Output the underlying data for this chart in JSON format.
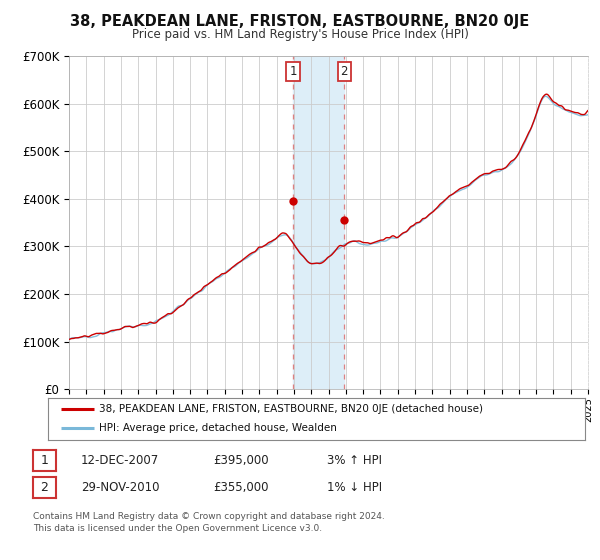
{
  "title": "38, PEAKDEAN LANE, FRISTON, EASTBOURNE, BN20 0JE",
  "subtitle": "Price paid vs. HM Land Registry's House Price Index (HPI)",
  "ylim": [
    0,
    700000
  ],
  "yticks": [
    0,
    100000,
    200000,
    300000,
    400000,
    500000,
    600000,
    700000
  ],
  "ytick_labels": [
    "£0",
    "£100K",
    "£200K",
    "£300K",
    "£400K",
    "£500K",
    "£600K",
    "£700K"
  ],
  "hpi_color": "#7ab8d9",
  "price_color": "#cc0000",
  "marker_color": "#cc0000",
  "sale1_date_num": 2007.95,
  "sale1_price": 395000,
  "sale1_label": "1",
  "sale2_date_num": 2010.91,
  "sale2_price": 355000,
  "sale2_label": "2",
  "legend_line1": "38, PEAKDEAN LANE, FRISTON, EASTBOURNE, BN20 0JE (detached house)",
  "legend_line2": "HPI: Average price, detached house, Wealden",
  "table_row1": [
    "1",
    "12-DEC-2007",
    "£395,000",
    "3% ↑ HPI"
  ],
  "table_row2": [
    "2",
    "29-NOV-2010",
    "£355,000",
    "1% ↓ HPI"
  ],
  "footnote1": "Contains HM Land Registry data © Crown copyright and database right 2024.",
  "footnote2": "This data is licensed under the Open Government Licence v3.0.",
  "background_color": "#ffffff",
  "grid_color": "#cccccc",
  "shade_color": "#ddeef8",
  "vline_color": "#dd6666"
}
